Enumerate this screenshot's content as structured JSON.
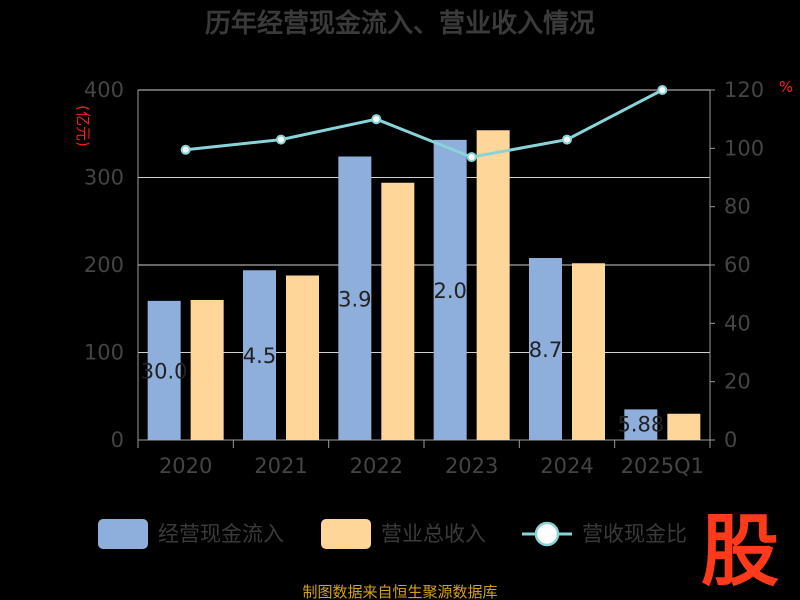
{
  "chart_data": {
    "type": "bar",
    "title": "历年经营现金流入、营业收入情况",
    "categories": [
      "2020",
      "2021",
      "2022",
      "2023",
      "2024",
      "2025Q1"
    ],
    "left_axis": {
      "unit": "(亿元)",
      "ticks": [
        "0",
        "100",
        "200",
        "300",
        "400"
      ],
      "ylim": [
        0,
        400
      ]
    },
    "right_axis": {
      "unit": "%",
      "ticks": [
        "0",
        "20",
        "40",
        "60",
        "80",
        "100",
        "120"
      ],
      "ylim": [
        0,
        120
      ]
    },
    "series": [
      {
        "name": "经营现金流入",
        "kind": "bar",
        "axis": "left",
        "color": "#8eaedb",
        "values": [
          159,
          194,
          324,
          343,
          208,
          35
        ],
        "labels": [
          "30.0",
          "4.5",
          "3.9",
          "2.0",
          "8.7",
          "5.88"
        ]
      },
      {
        "name": "营业总收入",
        "kind": "bar",
        "axis": "left",
        "color": "#ffd699",
        "values": [
          160,
          188,
          294,
          354,
          202,
          30
        ]
      },
      {
        "name": "营收现金比",
        "kind": "line",
        "axis": "right",
        "color": "#88d4d8",
        "values": [
          99.5,
          103,
          110,
          97,
          103,
          120
        ]
      }
    ],
    "legend_position": "bottom",
    "grid": true
  },
  "source": "制图数据来自恒生聚源数据库",
  "stamp": "股"
}
